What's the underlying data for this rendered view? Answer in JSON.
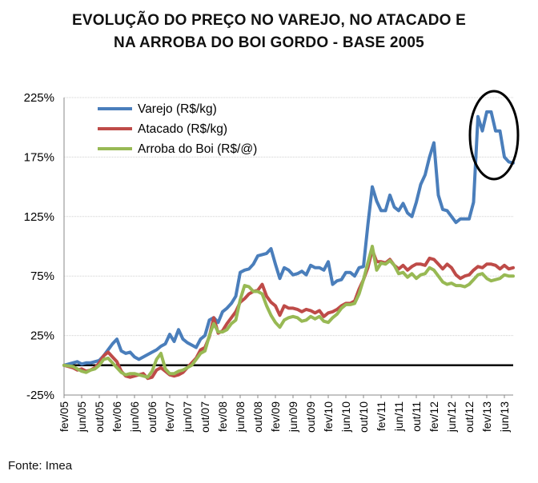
{
  "chart_data": {
    "type": "line",
    "title_line1": "EVOLUÇÃO DO PREÇO NO VAREJO, NO ATACADO E",
    "title_line2": "NA ARROBA DO BOI GORDO - BASE 2005",
    "source": "Fonte: Imea",
    "y_ticks": [
      "225%",
      "175%",
      "125%",
      "75%",
      "25%",
      "-25%"
    ],
    "y_tick_values": [
      225,
      175,
      125,
      75,
      25,
      -25
    ],
    "ylim": [
      -25,
      225
    ],
    "x_ticks": [
      "fev/05",
      "jun/05",
      "out/05",
      "fev/06",
      "jun/06",
      "out/06",
      "fev/07",
      "jun/07",
      "out/07",
      "fev/08",
      "jun/08",
      "out/08",
      "fev/09",
      "jun/09",
      "out/09",
      "fev/10",
      "jun/10",
      "out/10",
      "fev/11",
      "jun/11",
      "out/11",
      "fev/12",
      "jun/12",
      "out/12",
      "fev/13",
      "jun/13"
    ],
    "xlim": [
      0,
      100
    ],
    "grid": true,
    "legend_position": "top-left",
    "colors": {
      "varejo": "#4a7ebb",
      "atacado": "#be4b48",
      "arroba": "#98b954",
      "zero_line": "#000000"
    },
    "series": [
      {
        "name": "Varejo (R$/kg)",
        "color": "#4a7ebb",
        "points": [
          [
            0,
            0
          ],
          [
            2,
            2
          ],
          [
            3,
            3
          ],
          [
            4,
            1
          ],
          [
            5,
            2
          ],
          [
            6,
            2
          ],
          [
            7,
            3
          ],
          [
            8,
            4
          ],
          [
            9,
            8
          ],
          [
            10,
            13
          ],
          [
            11,
            18
          ],
          [
            12,
            22
          ],
          [
            13,
            12
          ],
          [
            14,
            10
          ],
          [
            15,
            11
          ],
          [
            16,
            7
          ],
          [
            17,
            5
          ],
          [
            18,
            7
          ],
          [
            19,
            9
          ],
          [
            20,
            11
          ],
          [
            21,
            13
          ],
          [
            22,
            16
          ],
          [
            23,
            18
          ],
          [
            24,
            26
          ],
          [
            25,
            20
          ],
          [
            26,
            30
          ],
          [
            27,
            22
          ],
          [
            28,
            19
          ],
          [
            29,
            17
          ],
          [
            30,
            15
          ],
          [
            31,
            22
          ],
          [
            32,
            25
          ],
          [
            33,
            38
          ],
          [
            34,
            40
          ],
          [
            35,
            36
          ],
          [
            36,
            45
          ],
          [
            37,
            48
          ],
          [
            38,
            52
          ],
          [
            39,
            58
          ],
          [
            40,
            78
          ],
          [
            41,
            80
          ],
          [
            42,
            81
          ],
          [
            43,
            85
          ],
          [
            44,
            92
          ],
          [
            45,
            93
          ],
          [
            46,
            94
          ],
          [
            47,
            98
          ],
          [
            48,
            85
          ],
          [
            49,
            73
          ],
          [
            50,
            82
          ],
          [
            51,
            80
          ],
          [
            52,
            76
          ],
          [
            53,
            77
          ],
          [
            54,
            79
          ],
          [
            55,
            76
          ],
          [
            56,
            84
          ],
          [
            57,
            82
          ],
          [
            58,
            82
          ],
          [
            59,
            80
          ],
          [
            60,
            87
          ],
          [
            61,
            68
          ],
          [
            62,
            71
          ],
          [
            63,
            72
          ],
          [
            64,
            78
          ],
          [
            65,
            78
          ],
          [
            66,
            75
          ],
          [
            67,
            82
          ],
          [
            68,
            83
          ],
          [
            69,
            118
          ],
          [
            70,
            150
          ],
          [
            71,
            138
          ],
          [
            72,
            130
          ],
          [
            73,
            130
          ],
          [
            74,
            143
          ],
          [
            75,
            133
          ],
          [
            76,
            130
          ],
          [
            77,
            136
          ],
          [
            78,
            128
          ],
          [
            79,
            125
          ],
          [
            80,
            137
          ],
          [
            81,
            152
          ],
          [
            82,
            160
          ],
          [
            83,
            175
          ],
          [
            84,
            187
          ],
          [
            85,
            143
          ],
          [
            86,
            131
          ],
          [
            87,
            130
          ],
          [
            88,
            125
          ],
          [
            89,
            120
          ],
          [
            90,
            123
          ],
          [
            91,
            123
          ],
          [
            92,
            123
          ],
          [
            93,
            137
          ],
          [
            94,
            209
          ],
          [
            95,
            197
          ],
          [
            96,
            213
          ],
          [
            97,
            213
          ],
          [
            98,
            197
          ],
          [
            99,
            197
          ],
          [
            100,
            175
          ],
          [
            101,
            171
          ],
          [
            102,
            170
          ]
        ]
      },
      {
        "name": "Atacado (R$/kg)",
        "color": "#be4b48",
        "points": [
          [
            0,
            0
          ],
          [
            2,
            -2
          ],
          [
            3,
            -4
          ],
          [
            4,
            -3
          ],
          [
            5,
            -5
          ],
          [
            6,
            -4
          ],
          [
            7,
            -2
          ],
          [
            8,
            2
          ],
          [
            9,
            8
          ],
          [
            10,
            11
          ],
          [
            11,
            7
          ],
          [
            12,
            3
          ],
          [
            13,
            -5
          ],
          [
            14,
            -9
          ],
          [
            15,
            -10
          ],
          [
            16,
            -9
          ],
          [
            17,
            -8
          ],
          [
            18,
            -7
          ],
          [
            19,
            -11
          ],
          [
            20,
            -10
          ],
          [
            21,
            -4
          ],
          [
            22,
            -2
          ],
          [
            23,
            -5
          ],
          [
            24,
            -8
          ],
          [
            25,
            -9
          ],
          [
            26,
            -8
          ],
          [
            27,
            -6
          ],
          [
            28,
            -2
          ],
          [
            29,
            2
          ],
          [
            30,
            6
          ],
          [
            31,
            13
          ],
          [
            32,
            15
          ],
          [
            33,
            24
          ],
          [
            34,
            40
          ],
          [
            35,
            27
          ],
          [
            36,
            29
          ],
          [
            37,
            35
          ],
          [
            38,
            40
          ],
          [
            39,
            45
          ],
          [
            40,
            53
          ],
          [
            41,
            56
          ],
          [
            42,
            60
          ],
          [
            43,
            62
          ],
          [
            44,
            63
          ],
          [
            45,
            68
          ],
          [
            46,
            58
          ],
          [
            47,
            53
          ],
          [
            48,
            50
          ],
          [
            49,
            42
          ],
          [
            50,
            50
          ],
          [
            51,
            48
          ],
          [
            52,
            48
          ],
          [
            53,
            47
          ],
          [
            54,
            45
          ],
          [
            55,
            47
          ],
          [
            56,
            46
          ],
          [
            57,
            44
          ],
          [
            58,
            46
          ],
          [
            59,
            41
          ],
          [
            60,
            44
          ],
          [
            61,
            45
          ],
          [
            62,
            47
          ],
          [
            63,
            50
          ],
          [
            64,
            52
          ],
          [
            65,
            52
          ],
          [
            66,
            54
          ],
          [
            67,
            64
          ],
          [
            68,
            72
          ],
          [
            69,
            82
          ],
          [
            70,
            97
          ],
          [
            71,
            87
          ],
          [
            72,
            87
          ],
          [
            73,
            86
          ],
          [
            74,
            89
          ],
          [
            75,
            84
          ],
          [
            76,
            81
          ],
          [
            77,
            84
          ],
          [
            78,
            80
          ],
          [
            79,
            83
          ],
          [
            80,
            85
          ],
          [
            81,
            85
          ],
          [
            82,
            84
          ],
          [
            83,
            90
          ],
          [
            84,
            89
          ],
          [
            85,
            85
          ],
          [
            86,
            81
          ],
          [
            87,
            85
          ],
          [
            88,
            82
          ],
          [
            89,
            76
          ],
          [
            90,
            73
          ],
          [
            91,
            75
          ],
          [
            92,
            76
          ],
          [
            93,
            80
          ],
          [
            94,
            83
          ],
          [
            95,
            82
          ],
          [
            96,
            85
          ],
          [
            97,
            85
          ],
          [
            98,
            84
          ],
          [
            99,
            81
          ],
          [
            100,
            84
          ],
          [
            101,
            81
          ],
          [
            102,
            82
          ]
        ]
      },
      {
        "name": "Arroba do Boi (R$/@)",
        "color": "#98b954",
        "points": [
          [
            0,
            0
          ],
          [
            2,
            -1
          ],
          [
            3,
            -3
          ],
          [
            4,
            -5
          ],
          [
            5,
            -6
          ],
          [
            6,
            -4
          ],
          [
            7,
            -3
          ],
          [
            8,
            0
          ],
          [
            9,
            5
          ],
          [
            10,
            6
          ],
          [
            11,
            2
          ],
          [
            12,
            -2
          ],
          [
            13,
            -6
          ],
          [
            14,
            -8
          ],
          [
            15,
            -7
          ],
          [
            16,
            -7
          ],
          [
            17,
            -8
          ],
          [
            18,
            -9
          ],
          [
            19,
            -10
          ],
          [
            20,
            -5
          ],
          [
            21,
            5
          ],
          [
            22,
            10
          ],
          [
            23,
            -3
          ],
          [
            24,
            -7
          ],
          [
            25,
            -7
          ],
          [
            26,
            -5
          ],
          [
            27,
            -4
          ],
          [
            28,
            -2
          ],
          [
            29,
            0
          ],
          [
            30,
            5
          ],
          [
            31,
            10
          ],
          [
            32,
            12
          ],
          [
            33,
            25
          ],
          [
            34,
            35
          ],
          [
            35,
            28
          ],
          [
            36,
            28
          ],
          [
            37,
            30
          ],
          [
            38,
            35
          ],
          [
            39,
            38
          ],
          [
            40,
            55
          ],
          [
            41,
            67
          ],
          [
            42,
            66
          ],
          [
            43,
            62
          ],
          [
            44,
            62
          ],
          [
            45,
            60
          ],
          [
            46,
            50
          ],
          [
            47,
            42
          ],
          [
            48,
            36
          ],
          [
            49,
            32
          ],
          [
            50,
            38
          ],
          [
            51,
            40
          ],
          [
            52,
            41
          ],
          [
            53,
            40
          ],
          [
            54,
            37
          ],
          [
            55,
            38
          ],
          [
            56,
            41
          ],
          [
            57,
            39
          ],
          [
            58,
            41
          ],
          [
            59,
            37
          ],
          [
            60,
            36
          ],
          [
            61,
            40
          ],
          [
            62,
            43
          ],
          [
            63,
            48
          ],
          [
            64,
            51
          ],
          [
            65,
            51
          ],
          [
            66,
            52
          ],
          [
            67,
            60
          ],
          [
            68,
            72
          ],
          [
            69,
            86
          ],
          [
            70,
            100
          ],
          [
            71,
            80
          ],
          [
            72,
            86
          ],
          [
            73,
            85
          ],
          [
            74,
            88
          ],
          [
            75,
            84
          ],
          [
            76,
            77
          ],
          [
            77,
            78
          ],
          [
            78,
            74
          ],
          [
            79,
            77
          ],
          [
            80,
            73
          ],
          [
            81,
            76
          ],
          [
            82,
            77
          ],
          [
            83,
            82
          ],
          [
            84,
            80
          ],
          [
            85,
            75
          ],
          [
            86,
            70
          ],
          [
            87,
            68
          ],
          [
            88,
            69
          ],
          [
            89,
            67
          ],
          [
            90,
            67
          ],
          [
            91,
            66
          ],
          [
            92,
            68
          ],
          [
            93,
            72
          ],
          [
            94,
            76
          ],
          [
            95,
            77
          ],
          [
            96,
            73
          ],
          [
            97,
            71
          ],
          [
            98,
            72
          ],
          [
            99,
            73
          ],
          [
            100,
            76
          ],
          [
            101,
            75
          ],
          [
            102,
            75
          ]
        ]
      }
    ]
  }
}
